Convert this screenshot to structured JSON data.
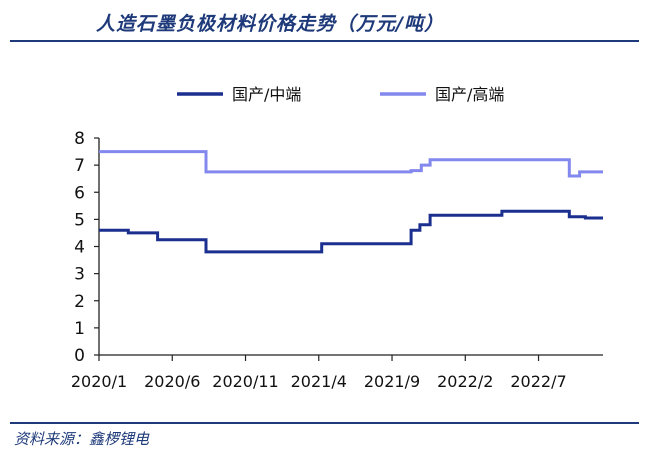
{
  "header": {
    "title": "人造石墨负极材料价格走势（万元/吨）"
  },
  "footer": {
    "source": "资料来源：鑫椤锂电"
  },
  "colors": {
    "accent": "#1f3a7a",
    "series1": "#1b2f8f",
    "series2": "#8388ee"
  },
  "chart_data": {
    "type": "line",
    "title": "人造石墨负极材料价格走势（万元/吨）",
    "xlabel": "",
    "ylabel": "",
    "x_ticks": [
      "2020/1",
      "2020/6",
      "2020/11",
      "2021/4",
      "2021/9",
      "2022/2",
      "2022/7"
    ],
    "x_tick_index": [
      0,
      5,
      10,
      15,
      20,
      25,
      30
    ],
    "xlim": [
      0,
      34.4
    ],
    "ylim": [
      0,
      8
    ],
    "y_ticks": [
      0,
      1,
      2,
      3,
      4,
      5,
      6,
      7,
      8
    ],
    "grid": false,
    "legend": "top",
    "series": [
      {
        "name": "国产/中端",
        "color": "#1b2f8f",
        "points": [
          [
            0,
            4.6
          ],
          [
            2,
            4.6
          ],
          [
            2,
            4.5
          ],
          [
            4,
            4.5
          ],
          [
            4,
            4.25
          ],
          [
            7.3,
            4.25
          ],
          [
            7.3,
            3.8
          ],
          [
            15.2,
            3.8
          ],
          [
            15.2,
            4.1
          ],
          [
            21.3,
            4.1
          ],
          [
            21.3,
            4.6
          ],
          [
            21.9,
            4.6
          ],
          [
            21.9,
            4.8
          ],
          [
            22.6,
            4.8
          ],
          [
            22.6,
            5.15
          ],
          [
            27.5,
            5.15
          ],
          [
            27.5,
            5.3
          ],
          [
            32.1,
            5.3
          ],
          [
            32.1,
            5.1
          ],
          [
            33.2,
            5.1
          ],
          [
            33.2,
            5.05
          ],
          [
            34.4,
            5.05
          ]
        ]
      },
      {
        "name": "国产/高端",
        "color": "#8388ee",
        "points": [
          [
            0,
            7.5
          ],
          [
            7.3,
            7.5
          ],
          [
            7.3,
            6.75
          ],
          [
            21.3,
            6.75
          ],
          [
            21.3,
            6.8
          ],
          [
            22,
            6.8
          ],
          [
            22,
            7.0
          ],
          [
            22.6,
            7.0
          ],
          [
            22.6,
            7.2
          ],
          [
            32.1,
            7.2
          ],
          [
            32.1,
            6.6
          ],
          [
            32.8,
            6.6
          ],
          [
            32.8,
            6.75
          ],
          [
            34.4,
            6.75
          ]
        ]
      }
    ]
  }
}
